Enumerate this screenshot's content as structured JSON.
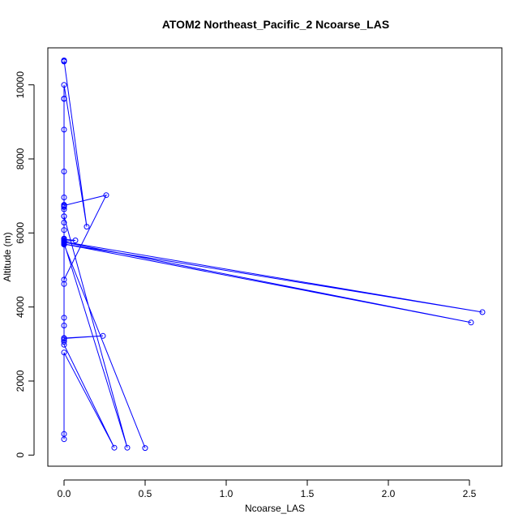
{
  "chart_data": {
    "type": "line",
    "title": "ATOM2 Northeast_Pacific_2 Ncoarse_LAS",
    "xlabel": "Ncoarse_LAS",
    "ylabel": "Altitude (m)",
    "xlim": [
      -0.1,
      2.7
    ],
    "ylim": [
      -300,
      11000
    ],
    "x_ticks": [
      0.0,
      0.5,
      1.0,
      1.5,
      2.0,
      2.5
    ],
    "x_tick_labels": [
      "0.0",
      "0.5",
      "1.0",
      "1.5",
      "2.0",
      "2.5"
    ],
    "y_ticks": [
      0,
      2000,
      4000,
      6000,
      8000,
      10000
    ],
    "y_tick_labels": [
      "0",
      "2000",
      "4000",
      "6000",
      "8000",
      "10000"
    ],
    "grid": false,
    "series": [
      {
        "color": "#0000ff",
        "marker": "open-circle",
        "x": [
          0.0,
          0.0,
          0.0,
          0.31,
          0.0,
          0.0,
          0.0,
          0.0,
          0.0,
          0.24,
          0.0,
          0.0,
          0.0,
          0.0,
          0.0,
          2.51,
          0.0,
          0.0,
          0.0,
          0.0,
          0.0,
          0.07,
          0.0,
          0.0,
          2.58,
          0.0,
          0.0,
          0.0,
          0.0,
          0.0,
          0.0,
          0.0,
          0.0,
          0.5,
          0.0,
          0.0,
          0.39,
          0.0,
          0.0,
          0.0,
          0.0,
          0.0,
          0.0,
          0.0,
          0.26,
          0.0,
          0.0,
          0.0,
          0.0,
          0.0,
          0.0,
          0.0,
          0.14,
          0.0,
          0.0,
          0.0,
          0.0
        ],
        "y": [
          430,
          570,
          2770,
          200,
          2980,
          3060,
          3110,
          3160,
          3150,
          3220,
          3160,
          3500,
          3710,
          4620,
          5700,
          3580,
          5750,
          5800,
          5840,
          5850,
          5830,
          5800,
          5780,
          5760,
          3860,
          5700,
          5720,
          5740,
          5780,
          6080,
          6280,
          6450,
          5690,
          190,
          5690,
          5730,
          200,
          6450,
          6640,
          6700,
          6730,
          6750,
          6760,
          6740,
          7020,
          4740,
          6960,
          7660,
          8790,
          9620,
          9630,
          10000,
          6170,
          10660,
          10650,
          10640,
          10630
        ]
      }
    ]
  }
}
